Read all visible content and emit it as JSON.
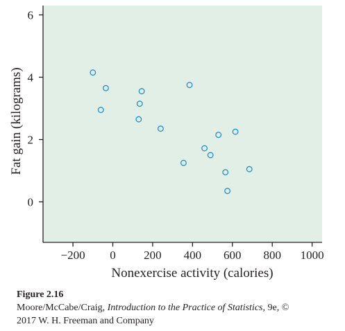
{
  "chart_data": {
    "type": "scatter",
    "title": "",
    "xlabel": "Nonexercise activity (calories)",
    "ylabel": "Fat gain (kilograms)",
    "xlim": [
      -350,
      1050
    ],
    "ylim": [
      -1.3,
      6.3
    ],
    "xticks": [
      -200,
      0,
      200,
      400,
      600,
      800,
      1000
    ],
    "yticks": [
      0,
      2,
      4,
      6
    ],
    "xtick_labels": [
      "−200",
      "0",
      "200",
      "400",
      "600",
      "800",
      "1000"
    ],
    "ytick_labels": [
      "0",
      "2",
      "4",
      "6"
    ],
    "grid": false,
    "background_color": "#e2efe6",
    "point_color": "#1f8fcf",
    "points": [
      {
        "x": -100,
        "y": 4.15
      },
      {
        "x": -60,
        "y": 2.95
      },
      {
        "x": -35,
        "y": 3.65
      },
      {
        "x": 130,
        "y": 2.65
      },
      {
        "x": 135,
        "y": 3.15
      },
      {
        "x": 145,
        "y": 3.55
      },
      {
        "x": 240,
        "y": 2.35
      },
      {
        "x": 355,
        "y": 1.25
      },
      {
        "x": 385,
        "y": 3.75
      },
      {
        "x": 460,
        "y": 1.72
      },
      {
        "x": 490,
        "y": 1.5
      },
      {
        "x": 530,
        "y": 2.15
      },
      {
        "x": 565,
        "y": 0.95
      },
      {
        "x": 575,
        "y": 0.35
      },
      {
        "x": 615,
        "y": 2.25
      },
      {
        "x": 685,
        "y": 1.05
      }
    ]
  },
  "caption": {
    "figure_label": "Figure 2.16",
    "line1_prefix": "Moore/McCabe/Craig, ",
    "book_title": "Introduction to the Practice of Statistics",
    "line1_suffix": ", 9e, ©",
    "line2": "2017 W. H. Freeman and Company"
  }
}
